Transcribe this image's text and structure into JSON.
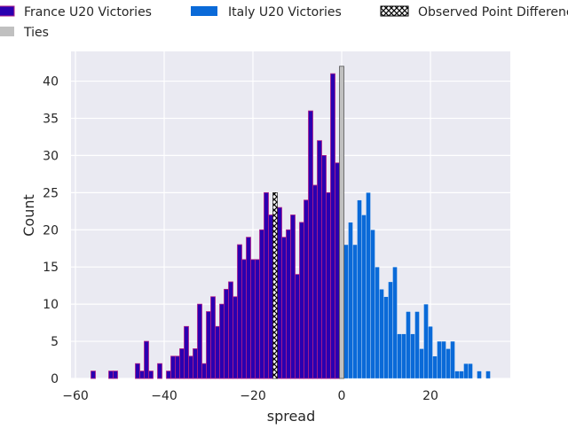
{
  "chart_data": {
    "type": "bar",
    "xlabel": "spread",
    "ylabel": "Count",
    "xlim": [
      -61,
      38
    ],
    "ylim": [
      0,
      44
    ],
    "grid": true,
    "legend_placement": "top (above plot, 3 columns)",
    "x_ticks": [
      -60,
      -40,
      -20,
      0,
      20
    ],
    "x_tick_labels": [
      "−60",
      "−40",
      "−20",
      "0",
      "20"
    ],
    "y_ticks": [
      0,
      5,
      10,
      15,
      20,
      25,
      30,
      35,
      40
    ],
    "y_tick_labels": [
      "0",
      "5",
      "10",
      "15",
      "20",
      "25",
      "30",
      "35",
      "40"
    ],
    "bin_width": 1,
    "series": [
      {
        "name": "France U20 Victories",
        "color": "#2a00b0",
        "edge_color": "#b0208a",
        "x": [
          -56,
          -52,
          -51,
          -46,
          -45,
          -44,
          -43,
          -41,
          -39,
          -38,
          -37,
          -36,
          -35,
          -34,
          -33,
          -32,
          -31,
          -30,
          -29,
          -28,
          -27,
          -26,
          -25,
          -24,
          -23,
          -22,
          -21,
          -20,
          -19,
          -18,
          -17,
          -16,
          -14,
          -13,
          -12,
          -11,
          -10,
          -9,
          -8,
          -7,
          -6,
          -5,
          -4,
          -3,
          -2,
          -1
        ],
        "values": [
          1,
          1,
          1,
          2,
          1,
          5,
          1,
          2,
          1,
          3,
          3,
          4,
          7,
          3,
          4,
          10,
          2,
          9,
          11,
          7,
          10,
          12,
          13,
          11,
          18,
          16,
          19,
          16,
          16,
          20,
          25,
          22,
          23,
          19,
          20,
          22,
          14,
          21,
          24,
          36,
          26,
          32,
          30,
          25,
          41,
          29
        ]
      },
      {
        "name": "Italy U20 Victories",
        "color": "#0a6ad8",
        "x": [
          1,
          2,
          3,
          4,
          5,
          6,
          7,
          8,
          9,
          10,
          11,
          12,
          13,
          14,
          15,
          16,
          17,
          18,
          19,
          20,
          21,
          22,
          23,
          24,
          25,
          26,
          27,
          28,
          29,
          31,
          33
        ],
        "values": [
          18,
          21,
          18,
          24,
          22,
          25,
          20,
          15,
          12,
          11,
          13,
          15,
          6,
          6,
          9,
          6,
          9,
          4,
          10,
          7,
          3,
          5,
          5,
          4,
          5,
          1,
          1,
          2,
          2,
          1,
          1
        ]
      },
      {
        "name": "Ties",
        "color": "#c0c0c0",
        "x": [
          0
        ],
        "values": [
          42
        ]
      },
      {
        "name": "Observed Point Difference",
        "color": "#000000",
        "hatch": "x",
        "x": [
          -15
        ],
        "values": [
          25
        ]
      }
    ]
  }
}
